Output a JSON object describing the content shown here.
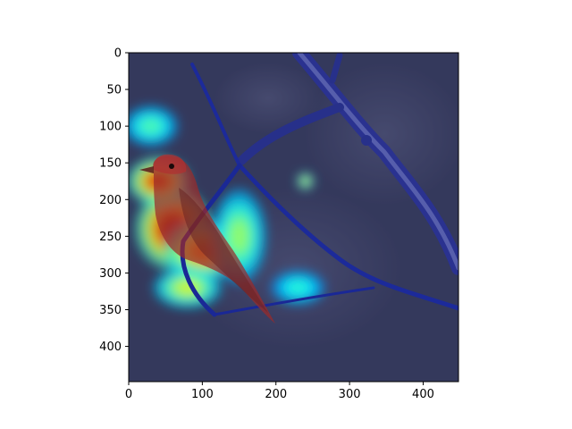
{
  "chart_data": {
    "type": "heatmap",
    "title": "",
    "xlabel": "",
    "ylabel": "",
    "xlim": [
      0,
      448
    ],
    "ylim": [
      448,
      0
    ],
    "x_ticks": [
      0,
      100,
      200,
      300,
      400
    ],
    "y_ticks": [
      0,
      50,
      100,
      150,
      200,
      250,
      300,
      350,
      400
    ],
    "x_tick_labels": [
      "0",
      "100",
      "200",
      "300",
      "400"
    ],
    "y_tick_labels": [
      "0",
      "50",
      "100",
      "150",
      "200",
      "250",
      "300",
      "350",
      "400"
    ],
    "colormap": "jet",
    "grid": false,
    "legend": "none",
    "colors": {
      "background": "#3a3f4c",
      "branch": "#1f2a8c",
      "bird": "#9a2a2a"
    },
    "hot_regions": [
      {
        "center": [
          60,
          240
        ],
        "spread": [
          55,
          60
        ],
        "level": 1.0
      },
      {
        "center": [
          40,
          175
        ],
        "spread": [
          45,
          35
        ],
        "level": 0.9
      },
      {
        "center": [
          100,
          270
        ],
        "spread": [
          55,
          45
        ],
        "level": 0.75
      },
      {
        "center": [
          80,
          320
        ],
        "spread": [
          50,
          30
        ],
        "level": 0.55
      },
      {
        "center": [
          150,
          250
        ],
        "spread": [
          40,
          70
        ],
        "level": 0.45
      },
      {
        "center": [
          30,
          100
        ],
        "spread": [
          40,
          30
        ],
        "level": 0.35
      },
      {
        "center": [
          240,
          175
        ],
        "spread": [
          12,
          12
        ],
        "level": 0.6
      },
      {
        "center": [
          230,
          320
        ],
        "spread": [
          40,
          25
        ],
        "level": 0.3
      }
    ]
  }
}
